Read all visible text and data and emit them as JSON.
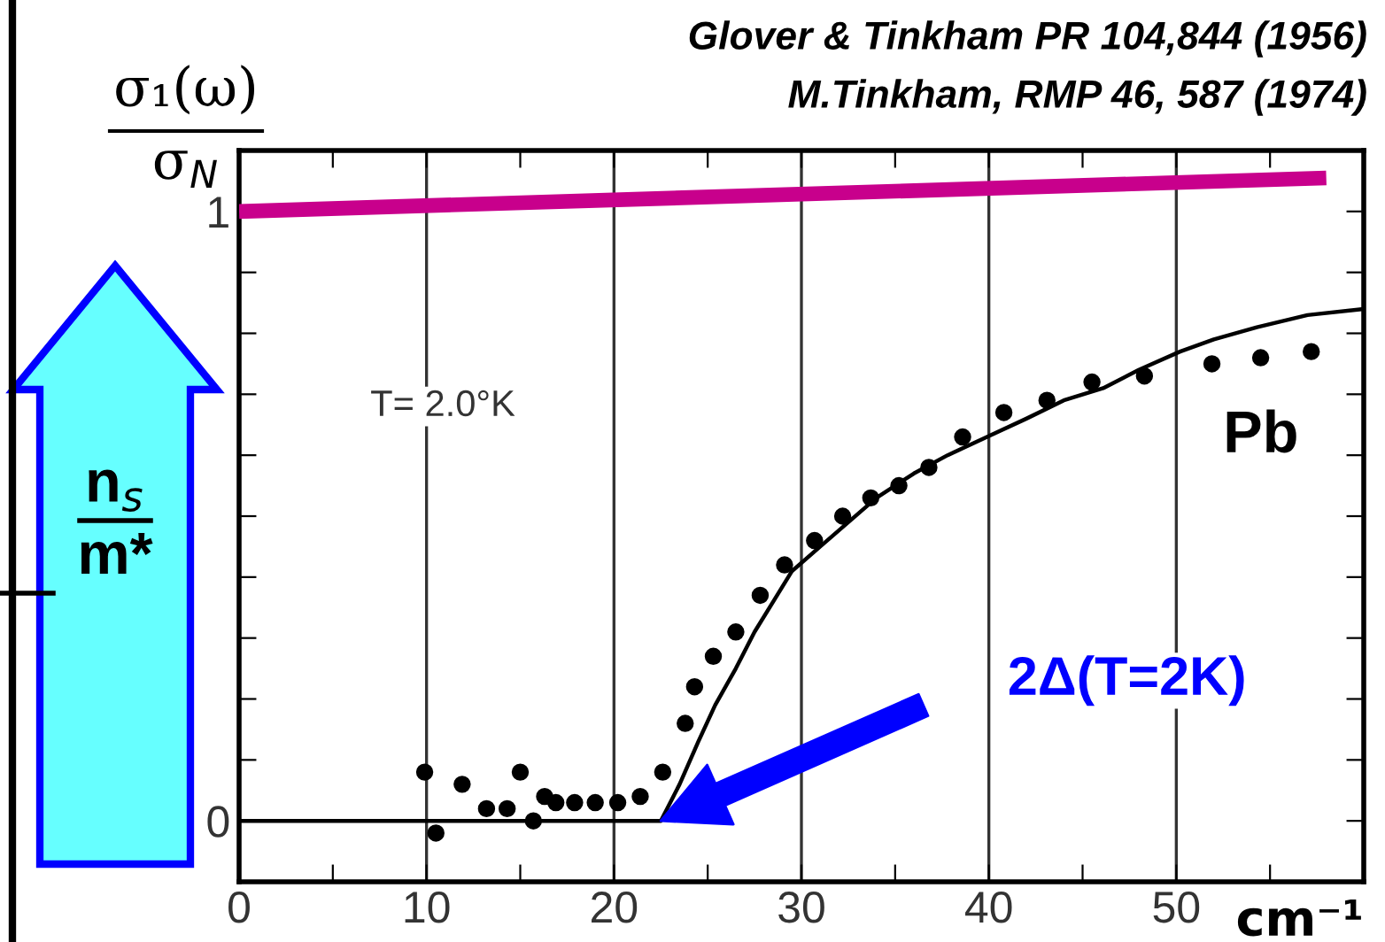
{
  "chart_data": {
    "type": "scatter",
    "xlabel": "cm⁻¹",
    "ylabel": "σ₁(ω)\nσ$_{N}$",
    "xlim": [
      0,
      60
    ],
    "ylim": [
      -0.1,
      1.1
    ],
    "xticks": [
      0,
      {
        "value": 5,
        "label": null
      },
      10,
      {
        "value": 15,
        "label": null
      },
      20,
      {
        "value": 25,
        "label": null
      },
      30,
      {
        "value": 35,
        "label": null
      },
      40,
      {
        "value": 45,
        "label": null
      },
      50,
      {
        "value": 55,
        "label": null
      }
    ],
    "yticks": [
      0,
      {
        "value": 0.1,
        "label": null
      },
      {
        "value": 0.2,
        "label": null
      },
      {
        "value": 0.3,
        "label": null
      },
      {
        "value": 0.4,
        "label": null
      },
      {
        "value": 0.5,
        "label": null
      },
      {
        "value": 0.6,
        "label": null
      },
      {
        "value": 0.7,
        "label": null
      },
      {
        "value": 0.8,
        "label": null
      },
      {
        "value": 0.9,
        "label": null
      },
      1
    ],
    "grid": "x",
    "marker": "circle",
    "series": [
      {
        "type": "line",
        "marker": "none",
        "color": "#c8008c",
        "x": [
          0,
          58
        ],
        "values": [
          1.0,
          1.055
        ]
      },
      {
        "type": "line",
        "marker": "none",
        "color": "#000000",
        "x": [
          0,
          22.5,
          23.5,
          24.5,
          25.4,
          26.5,
          27.5,
          28.5,
          29.5,
          31,
          32.5,
          34,
          36,
          37.8,
          39.9,
          42,
          44,
          46.1,
          48,
          50.2,
          52,
          54.3,
          57,
          60
        ],
        "values": [
          0,
          0,
          0.06,
          0.13,
          0.19,
          0.25,
          0.31,
          0.36,
          0.41,
          0.45,
          0.49,
          0.53,
          0.57,
          0.6,
          0.63,
          0.66,
          0.69,
          0.71,
          0.74,
          0.77,
          0.79,
          0.81,
          0.83,
          0.84
        ]
      },
      {
        "color": "#000000",
        "x": [
          9.9,
          10.5,
          11.9,
          13.2,
          14.3,
          15.0,
          15.7,
          16.3,
          16.9,
          17.9,
          19.0,
          20.2,
          21.4,
          22.6,
          23.8,
          24.3,
          25.3,
          26.5,
          27.8,
          29.1,
          30.7,
          32.2,
          33.7,
          35.2,
          36.8,
          38.6,
          40.8,
          43.1,
          45.5,
          48.3,
          51.9,
          54.5,
          57.2
        ],
        "values": [
          0.08,
          -0.02,
          0.06,
          0.02,
          0.02,
          0.08,
          0.0,
          0.04,
          0.03,
          0.03,
          0.03,
          0.03,
          0.04,
          0.08,
          0.16,
          0.22,
          0.27,
          0.31,
          0.37,
          0.42,
          0.46,
          0.5,
          0.53,
          0.55,
          0.58,
          0.63,
          0.67,
          0.69,
          0.72,
          0.73,
          0.75,
          0.76,
          0.77
        ]
      }
    ],
    "annotations": [
      "Glover & Tinkham PR 104,844 (1956)",
      "M.Tinkham, RMP 46, 587 (1974)",
      "T= 2.0°K",
      "Pb",
      "2Δ(T=2K)",
      "n$_{s}$\nm*"
    ]
  }
}
